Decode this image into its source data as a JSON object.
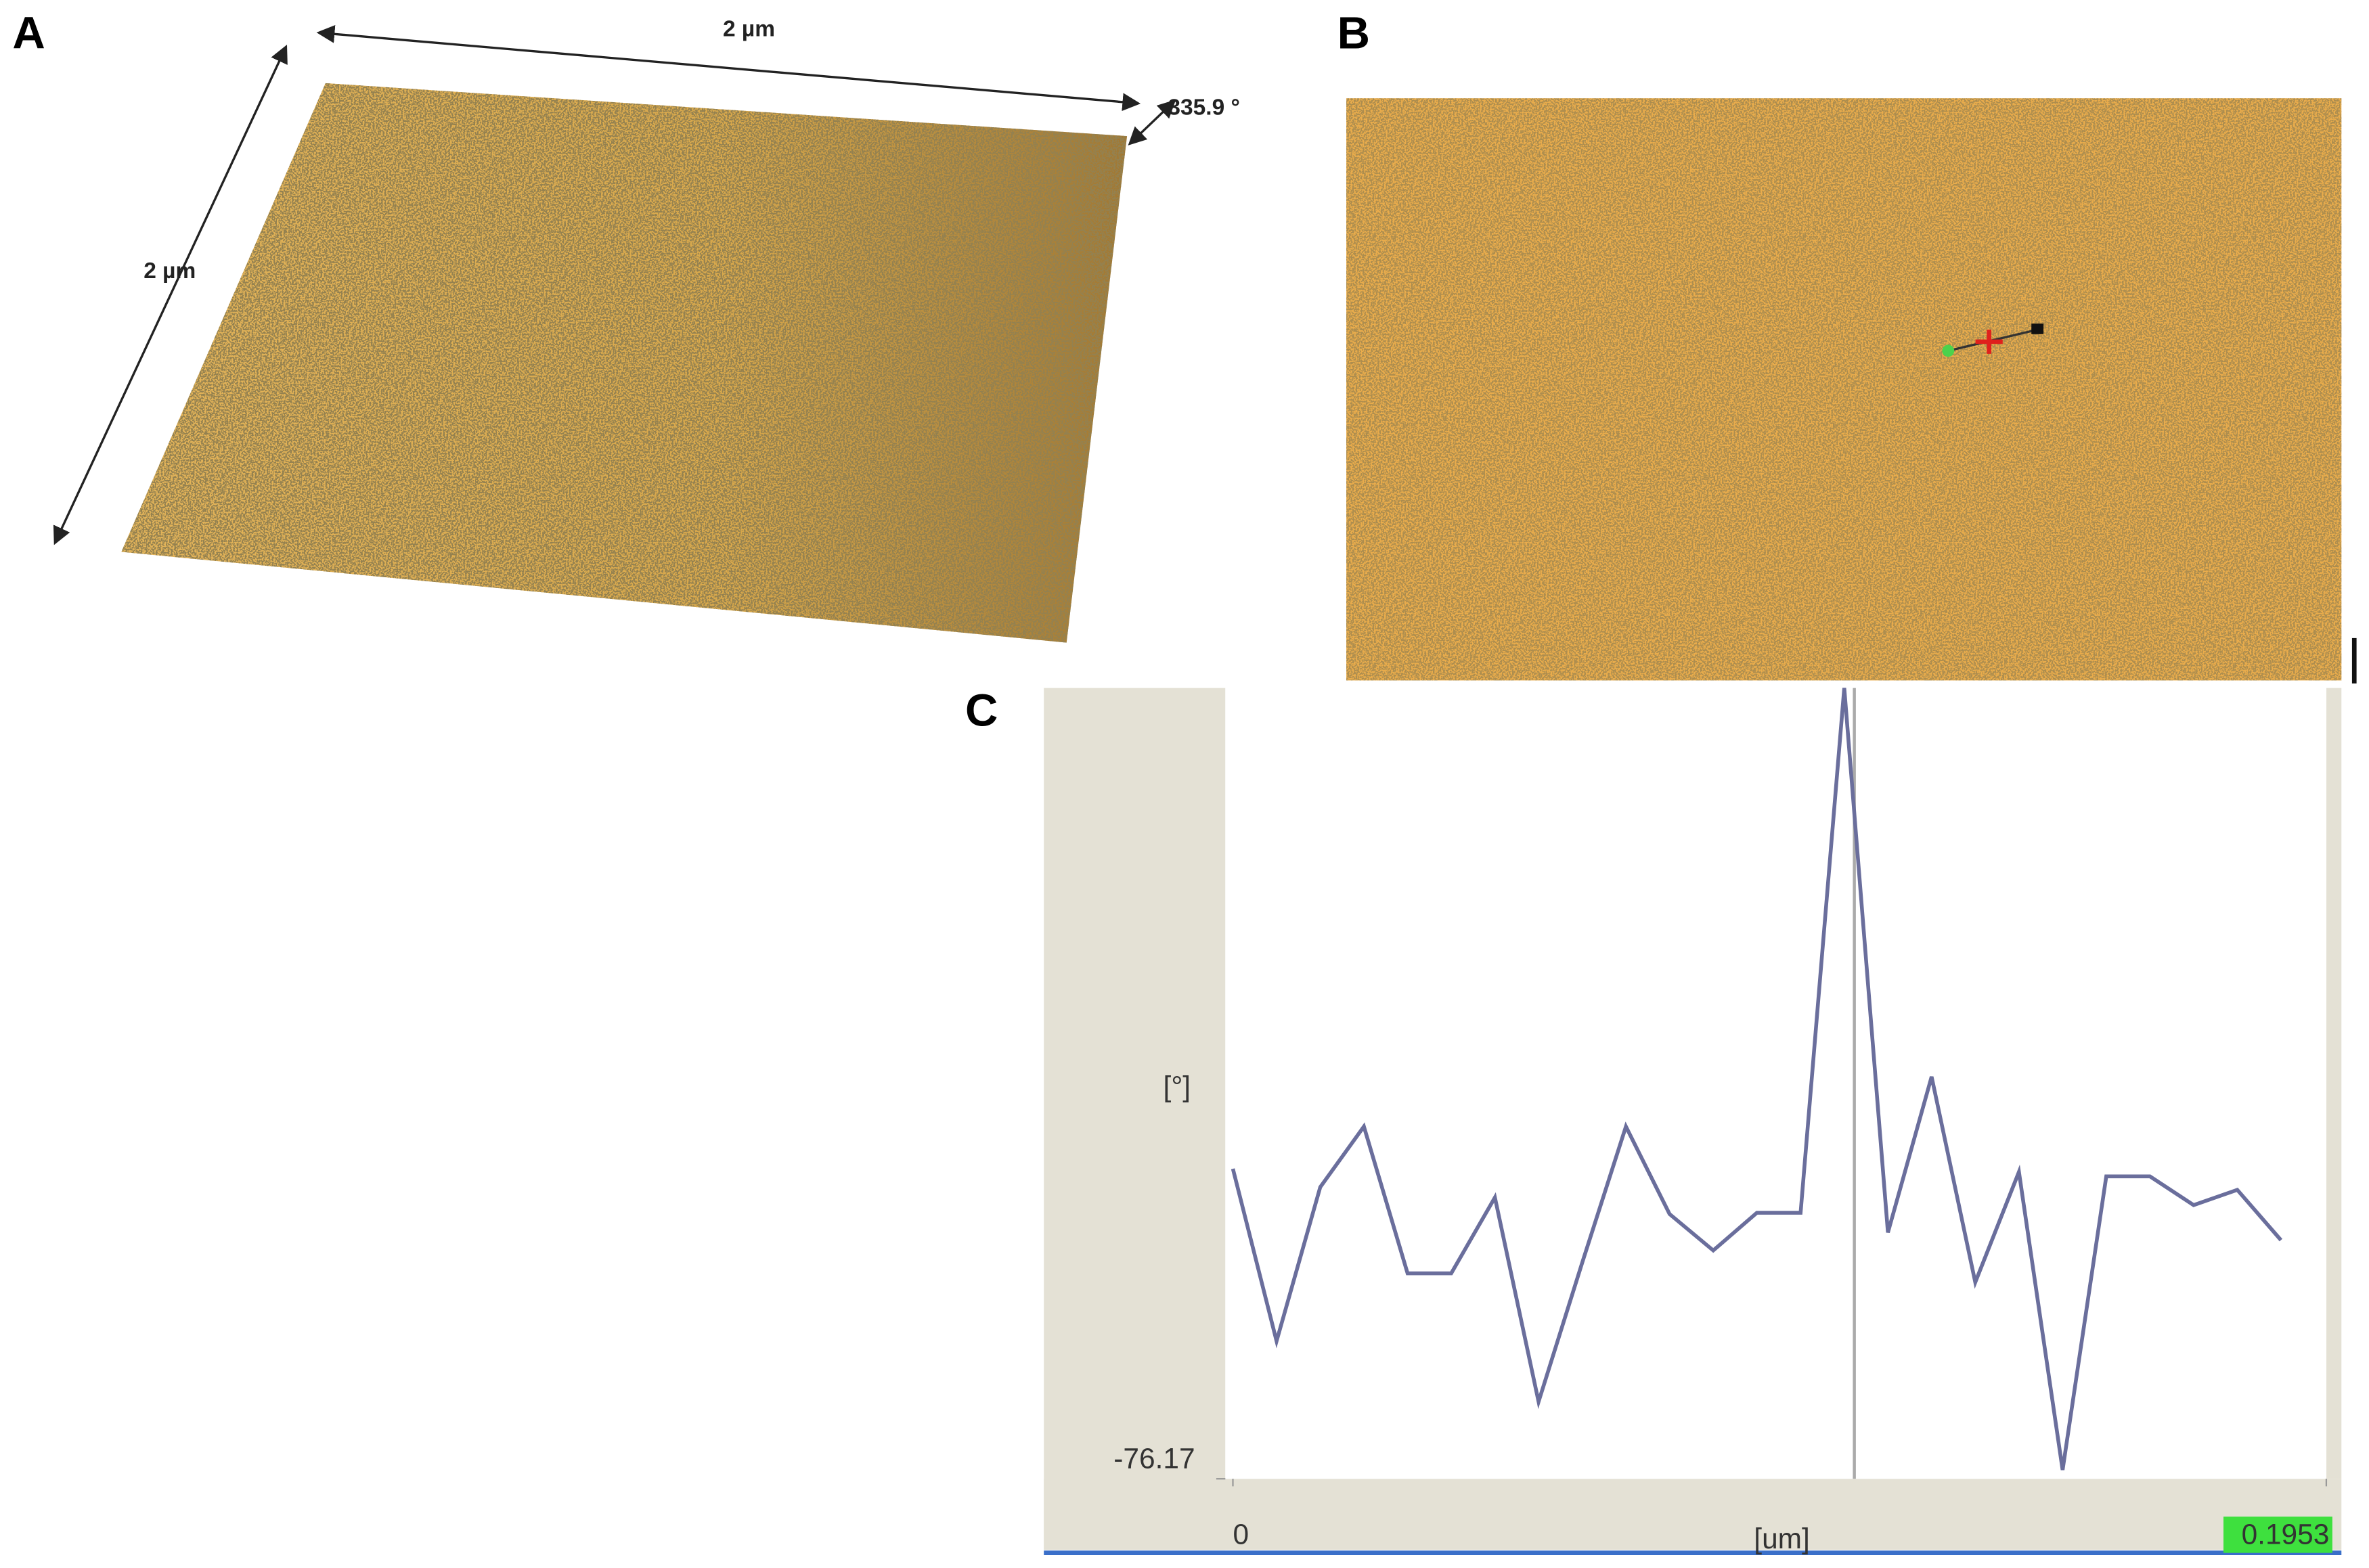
{
  "panels": {
    "a": {
      "label": "A",
      "width_label": "2 µm",
      "depth_label": "2 µm",
      "height_label": "335.9 °"
    },
    "b": {
      "label": "B"
    }
  },
  "chart_data": {
    "type": "line",
    "label": "C",
    "x_label": "[um]",
    "y_label": "[°]",
    "x": [
      0,
      0.0078,
      0.0156,
      0.0234,
      0.0312,
      0.039,
      0.0468,
      0.0546,
      0.0624,
      0.0702,
      0.078,
      0.0858,
      0.0936,
      0.1014,
      0.1092,
      0.117,
      0.1248,
      0.1326,
      0.1404,
      0.1482,
      0.156,
      0.1638,
      0.1716,
      0.1794,
      0.1872
    ],
    "series": [
      {
        "color": "#6a6e9c",
        "values": [
          -7.1,
          -45.5,
          -11.2,
          2.3,
          -30.4,
          -30.4,
          -13.5,
          -59.0,
          -28.0,
          2.3,
          -17.2,
          -25.3,
          -16.9,
          -16.9,
          100,
          -21.3,
          13.4,
          -32.4,
          -7.8,
          -74.2,
          -8.8,
          -8.8,
          -15.2,
          -11.8,
          -23.0
        ]
      }
    ],
    "cursor_x": 0.111,
    "xlim": [
      0,
      0.1953
    ],
    "xticks": [
      0,
      0.1953
    ],
    "ylim": [
      -76.17,
      100
    ],
    "yticks": [
      -76.17
    ]
  }
}
